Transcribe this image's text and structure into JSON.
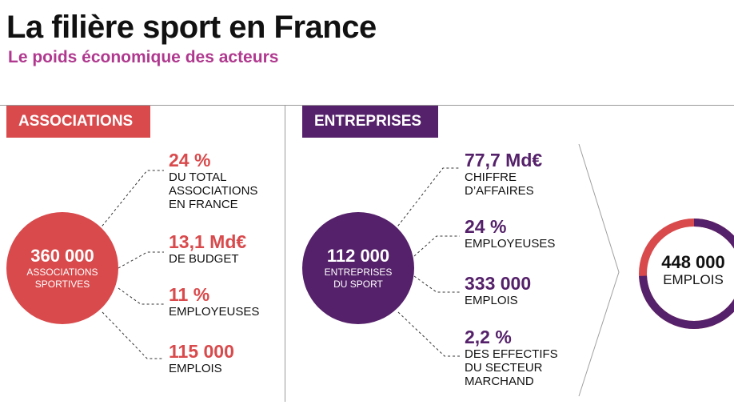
{
  "header": {
    "title": "La filière sport en France",
    "subtitle": "Le poids économique des acteurs"
  },
  "associations": {
    "tag": "ASSOCIATIONS",
    "circle": {
      "number": "360 000",
      "label_line1": "ASSOCIATIONS",
      "label_line2": "SPORTIVES"
    },
    "stats": [
      {
        "value": "24 %",
        "lines": [
          "DU TOTAL",
          "ASSOCIATIONS",
          "EN FRANCE"
        ]
      },
      {
        "value": "13,1 Md€",
        "lines": [
          "DE BUDGET"
        ]
      },
      {
        "value": "11 %",
        "lines": [
          "EMPLOYEUSES"
        ]
      },
      {
        "value": "115 000",
        "lines": [
          "EMPLOIS"
        ]
      }
    ]
  },
  "entreprises": {
    "tag": "ENTREPRISES",
    "circle": {
      "number": "112 000",
      "label_line1": "ENTREPRISES",
      "label_line2": "DU SPORT"
    },
    "stats": [
      {
        "value": "77,7 Md€",
        "lines": [
          "CHIFFRE",
          "D’AFFAIRES"
        ]
      },
      {
        "value": "24 %",
        "lines": [
          "EMPLOYEUSES"
        ]
      },
      {
        "value": "333 000",
        "lines": [
          "EMPLOIS"
        ]
      },
      {
        "value": "2,2 %",
        "lines": [
          "DES EFFECTIFS",
          "DU SECTEUR",
          "MARCHAND"
        ]
      }
    ]
  },
  "total": {
    "number": "448 000",
    "label": "EMPLOIS",
    "donut_share_entreprises": 0.743,
    "donut_share_associations": 0.257
  },
  "colors": {
    "associations": "#d94a4c",
    "entreprises": "#55216a",
    "subtitle": "#b0398f"
  }
}
